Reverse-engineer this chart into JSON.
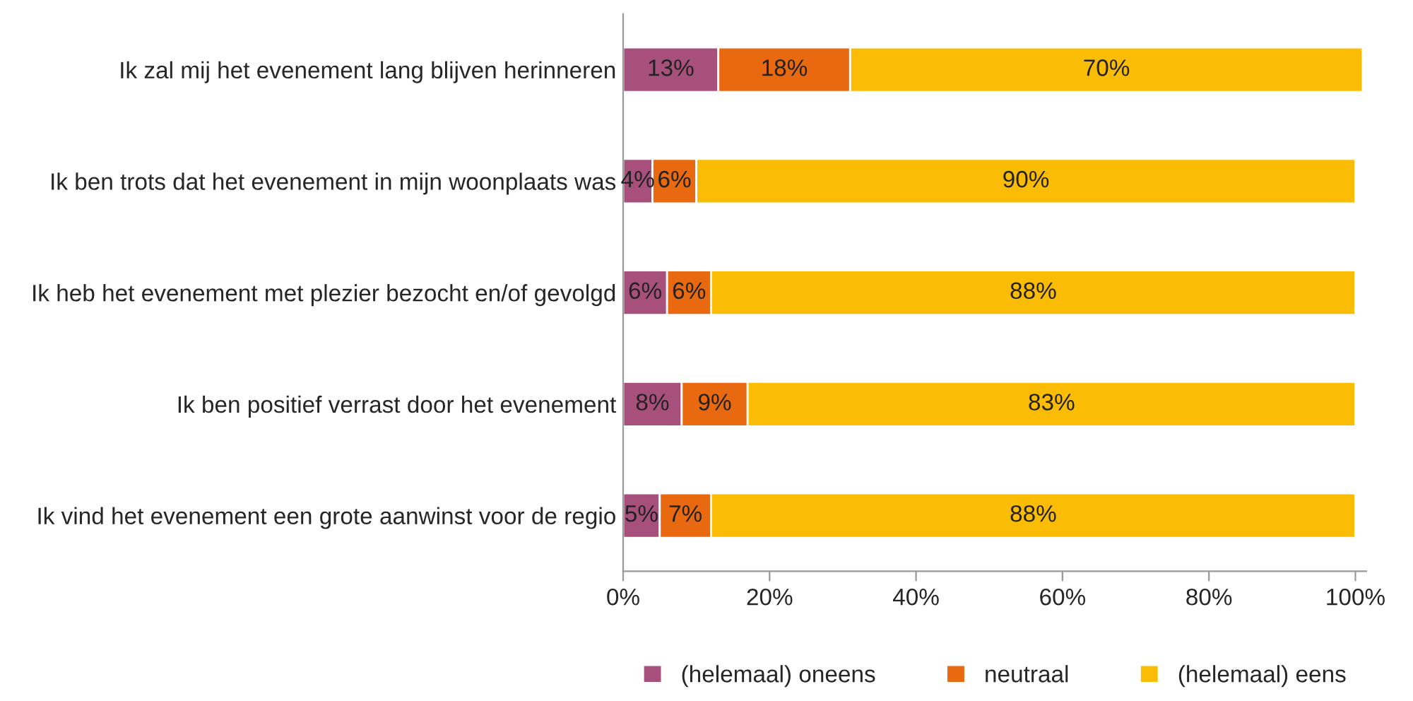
{
  "chart_data": {
    "type": "bar",
    "orientation": "horizontal",
    "stacked": true,
    "categories": [
      "Ik zal mij het evenement lang blijven herinneren",
      "Ik ben trots dat het evenement in mijn woonplaats was",
      "Ik heb het evenement met plezier bezocht en/of gevolgd",
      "Ik ben positief verrast door het evenement",
      "Ik vind het evenement een grote aanwinst voor de regio"
    ],
    "series": [
      {
        "name": "(helemaal) oneens",
        "color": "#a8507c",
        "values": [
          13,
          4,
          6,
          8,
          5
        ],
        "value_labels": [
          "13%",
          "4%",
          "6%",
          "8%",
          "5%"
        ]
      },
      {
        "name": "neutraal",
        "color": "#e8690f",
        "values": [
          18,
          6,
          6,
          9,
          7
        ],
        "value_labels": [
          "18%",
          "6%",
          "6%",
          "9%",
          "7%"
        ]
      },
      {
        "name": "(helemaal) eens",
        "color": "#fbbc05",
        "values": [
          70,
          90,
          88,
          83,
          88
        ],
        "value_labels": [
          "70%",
          "90%",
          "88%",
          "83%",
          "88%"
        ]
      }
    ],
    "xlim": [
      0,
      101.5
    ],
    "xticks": [
      {
        "value": 0,
        "label": "0%"
      },
      {
        "value": 20,
        "label": "20%"
      },
      {
        "value": 40,
        "label": "40%"
      },
      {
        "value": 60,
        "label": "60%"
      },
      {
        "value": 80,
        "label": "80%"
      },
      {
        "value": 100,
        "label": "100%"
      }
    ],
    "grid": false,
    "legend": "bottom"
  }
}
